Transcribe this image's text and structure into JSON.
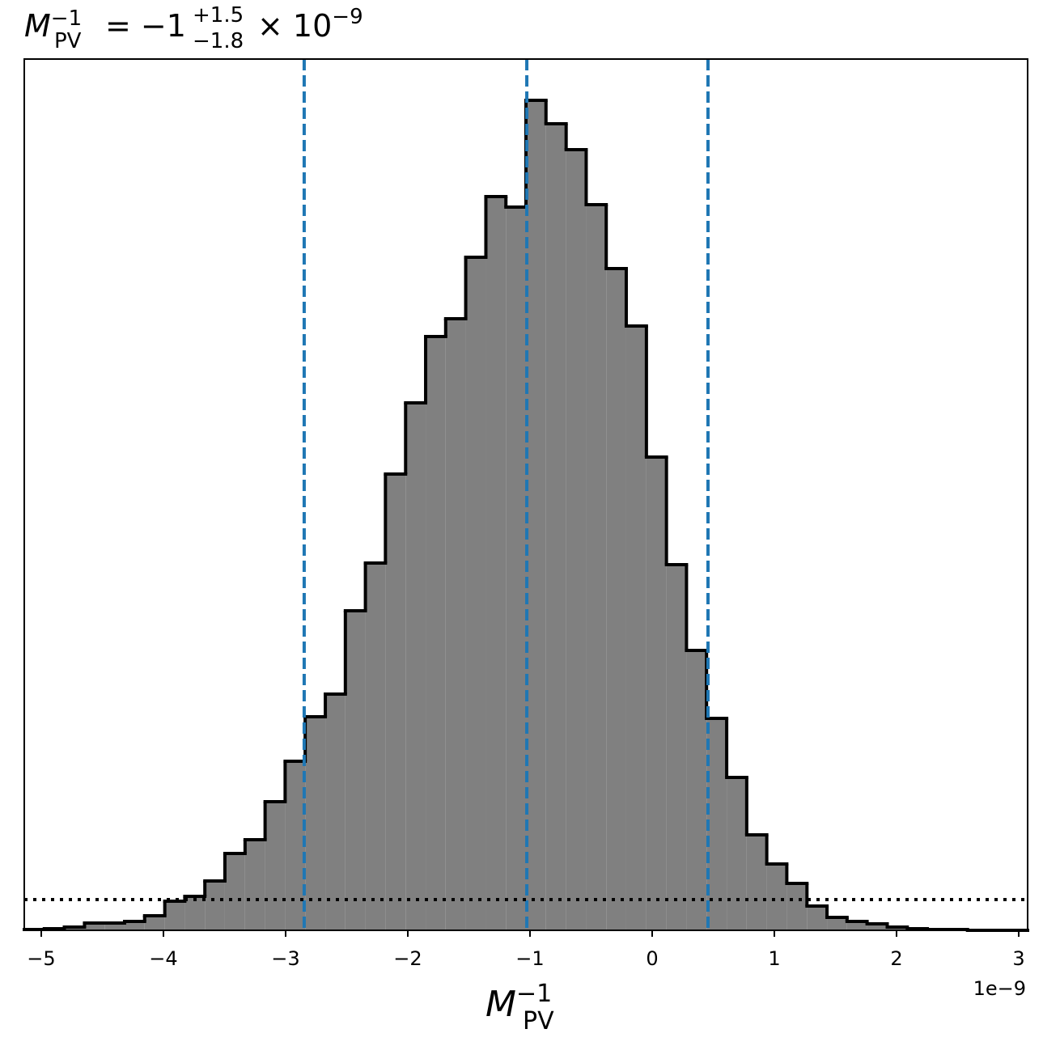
{
  "chart_data": {
    "type": "histogram",
    "title": {
      "symbol": "M",
      "subscript": "PV",
      "superscript": "−1",
      "equals": "= −1",
      "upper": "+1.5",
      "lower": "−1.8",
      "times": "× 10",
      "exponent": "−9"
    },
    "xlabel": {
      "symbol": "M",
      "subscript": "PV",
      "superscript": "−1"
    },
    "x_offset_label": "1e−9",
    "bins": [
      -5.139,
      -4.975,
      -4.811,
      -4.646,
      -4.482,
      -4.318,
      -4.154,
      -3.989,
      -3.825,
      -3.661,
      -3.497,
      -3.332,
      -3.168,
      -3.004,
      -2.84,
      -2.675,
      -2.511,
      -2.347,
      -2.183,
      -2.018,
      -1.854,
      -1.69,
      -1.526,
      -1.361,
      -1.197,
      -1.033,
      -0.869,
      -0.704,
      -0.54,
      -0.376,
      -0.212,
      -0.047,
      0.117,
      0.281,
      0.445,
      0.61,
      0.774,
      0.938,
      1.102,
      1.267,
      1.431,
      1.595,
      1.759,
      1.924,
      2.088,
      2.252,
      2.416,
      2.581,
      2.745,
      2.909,
      3.073
    ],
    "values": [
      1,
      2,
      4,
      9,
      9,
      11,
      18,
      36,
      42,
      61,
      95,
      112,
      159,
      209,
      264,
      292,
      395,
      454,
      564,
      652,
      734,
      756,
      832,
      907,
      894,
      1026,
      997,
      965,
      897,
      818,
      747,
      585,
      452,
      346,
      262,
      189,
      118,
      82,
      58,
      30,
      16,
      11,
      8,
      4,
      2,
      1,
      1,
      0,
      0,
      0
    ],
    "color": "#808080",
    "edge_color": "#000000",
    "quantiles": [
      -2.848,
      -1.026,
      0.457
    ],
    "quantile_color": "#1f77b4",
    "hline": 38,
    "xlim": [
      -5.139,
      3.073
    ],
    "ylim": [
      0,
      1077
    ],
    "xticks": [
      {
        "value": -5,
        "label": "−5"
      },
      {
        "value": -4,
        "label": "−4"
      },
      {
        "value": -3,
        "label": "−3"
      },
      {
        "value": -2,
        "label": "−2"
      },
      {
        "value": -1,
        "label": "−1"
      },
      0,
      1,
      2,
      3
    ]
  }
}
